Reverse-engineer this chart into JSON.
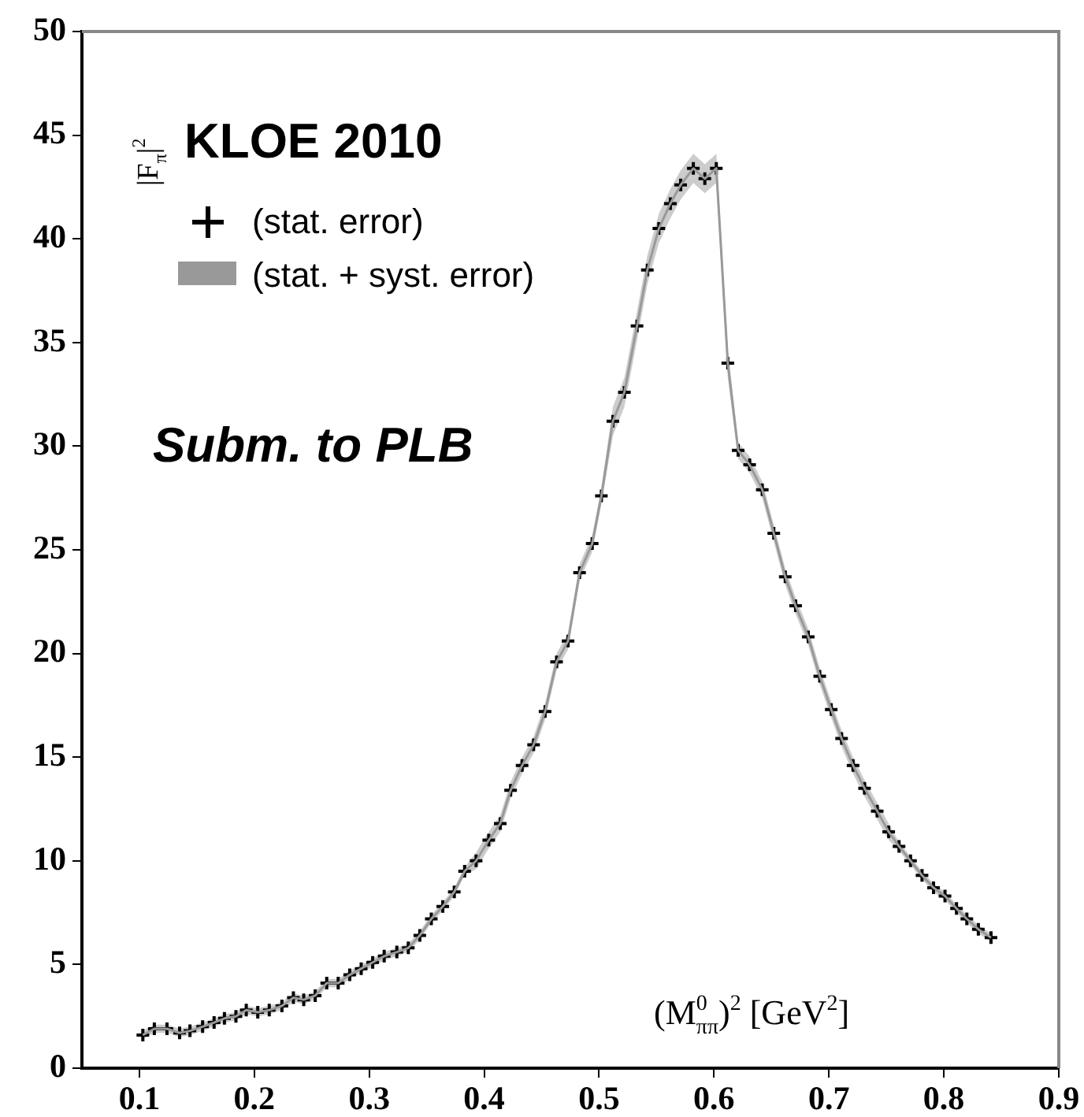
{
  "chart_data": {
    "type": "line",
    "legend_title": "KLOE 2010",
    "legend": "top left",
    "marker": "cross",
    "xlabel": "(M$^{0}$$_{ππ}$)$^{2}$ [GeV$^{2}$]",
    "ylabel": "|F$_{π}$|$^{2}$",
    "annotations": [
      "Subm. to PLB"
    ],
    "x": [
      0.103,
      0.113,
      0.124,
      0.135,
      0.144,
      0.155,
      0.165,
      0.174,
      0.184,
      0.193,
      0.203,
      0.213,
      0.224,
      0.234,
      0.243,
      0.253,
      0.263,
      0.273,
      0.283,
      0.293,
      0.303,
      0.313,
      0.324,
      0.334,
      0.344,
      0.354,
      0.364,
      0.374,
      0.383,
      0.393,
      0.404,
      0.414,
      0.423,
      0.433,
      0.443,
      0.453,
      0.463,
      0.473,
      0.483,
      0.494,
      0.502,
      0.512,
      0.522,
      0.533,
      0.542,
      0.552,
      0.562,
      0.571,
      0.582,
      0.592,
      0.602,
      0.612,
      0.621,
      0.631,
      0.642,
      0.652,
      0.662,
      0.671,
      0.682,
      0.692,
      0.702,
      0.711,
      0.721,
      0.731,
      0.742,
      0.752,
      0.761,
      0.771,
      0.781,
      0.791,
      0.801,
      0.811,
      0.82,
      0.83,
      0.841
    ],
    "series": [
      {
        "name": "(stat. + syst. error)",
        "type": "line",
        "marker": "none",
        "color": "#999999",
        "values": [
          1.6,
          1.9,
          1.9,
          1.7,
          1.8,
          2.0,
          2.2,
          2.4,
          2.5,
          2.8,
          2.7,
          2.8,
          3.0,
          3.4,
          3.3,
          3.5,
          4.1,
          4.1,
          4.5,
          4.8,
          5.1,
          5.4,
          5.6,
          5.8,
          6.4,
          7.2,
          7.8,
          8.5,
          9.5,
          10.0,
          11.0,
          11.8,
          13.4,
          14.6,
          15.6,
          17.2,
          19.6,
          20.6,
          23.9,
          25.3,
          27.6,
          31.2,
          32.6,
          35.8,
          38.5,
          40.5,
          41.7,
          42.6,
          43.4,
          42.9,
          43.4,
          34.0,
          29.8,
          29.1,
          27.9,
          25.8,
          23.7,
          22.3,
          20.8,
          18.9,
          17.3,
          15.9,
          14.6,
          13.5,
          12.4,
          11.4,
          10.7,
          10.0,
          9.3,
          8.7,
          8.3,
          7.7,
          7.2,
          6.7,
          6.3
        ],
        "upper": [
          1.8,
          2.1,
          2.1,
          1.9,
          2.0,
          2.2,
          2.4,
          2.6,
          2.7,
          3.0,
          2.9,
          3.0,
          3.2,
          3.6,
          3.5,
          3.7,
          4.3,
          4.3,
          4.7,
          5.0,
          5.3,
          5.6,
          5.8,
          6.0,
          6.6,
          7.4,
          8.0,
          8.7,
          9.7,
          10.4,
          11.4,
          12.2,
          13.8,
          15.0,
          16.0,
          17.6,
          20.0,
          21.0,
          24.3,
          25.7,
          28.0,
          31.9,
          33.3,
          36.5,
          39.2,
          41.2,
          42.4,
          43.3,
          44.1,
          43.6,
          44.1,
          34.7,
          30.2,
          29.5,
          28.3,
          26.2,
          24.1,
          22.7,
          21.2,
          19.3,
          17.7,
          16.3,
          15.0,
          13.9,
          12.8,
          11.8,
          10.9,
          10.2,
          9.5,
          8.9,
          8.5,
          7.9,
          7.4,
          6.9,
          6.5
        ],
        "lower": [
          1.4,
          1.7,
          1.7,
          1.5,
          1.6,
          1.8,
          2.0,
          2.2,
          2.3,
          2.6,
          2.5,
          2.6,
          2.8,
          3.2,
          3.1,
          3.3,
          3.9,
          3.9,
          4.3,
          4.6,
          4.9,
          5.2,
          5.4,
          5.6,
          6.2,
          7.0,
          7.6,
          8.3,
          9.3,
          9.6,
          10.6,
          11.4,
          13.0,
          14.2,
          15.2,
          16.8,
          19.2,
          20.2,
          23.5,
          24.9,
          27.2,
          30.5,
          31.9,
          35.1,
          37.8,
          39.8,
          41.0,
          41.9,
          42.7,
          42.2,
          42.7,
          33.3,
          29.4,
          28.7,
          27.5,
          25.4,
          23.3,
          21.9,
          20.4,
          18.5,
          16.9,
          15.5,
          14.2,
          13.1,
          12.0,
          11.0,
          10.5,
          9.8,
          9.1,
          8.5,
          8.1,
          7.5,
          7.0,
          6.5,
          6.1
        ]
      },
      {
        "name": "(stat. error)",
        "type": "scatter",
        "color": "#000000",
        "values": [
          1.6,
          1.9,
          1.9,
          1.7,
          1.8,
          2.0,
          2.2,
          2.4,
          2.5,
          2.8,
          2.7,
          2.8,
          3.0,
          3.4,
          3.3,
          3.5,
          4.1,
          4.1,
          4.5,
          4.8,
          5.1,
          5.4,
          5.6,
          5.8,
          6.4,
          7.2,
          7.8,
          8.5,
          9.5,
          10.0,
          11.0,
          11.8,
          13.4,
          14.6,
          15.6,
          17.2,
          19.6,
          20.6,
          23.9,
          25.3,
          27.6,
          31.2,
          32.6,
          35.8,
          38.5,
          40.5,
          41.7,
          42.6,
          43.4,
          42.9,
          43.4,
          34.0,
          29.8,
          29.1,
          27.9,
          25.8,
          23.7,
          22.3,
          20.8,
          18.9,
          17.3,
          15.9,
          14.6,
          13.5,
          12.4,
          11.4,
          10.7,
          10.0,
          9.3,
          8.7,
          8.3,
          7.7,
          7.2,
          6.7,
          6.3
        ]
      }
    ],
    "xlim": [
      0.05,
      0.9
    ],
    "xticks": [
      0.1,
      0.2,
      0.3,
      0.4,
      0.5,
      0.6,
      0.7,
      0.8,
      0.9
    ],
    "ylim": [
      0,
      50
    ],
    "yticks": [
      0,
      5,
      10,
      15,
      20,
      25,
      30,
      35,
      40,
      45,
      50
    ]
  }
}
